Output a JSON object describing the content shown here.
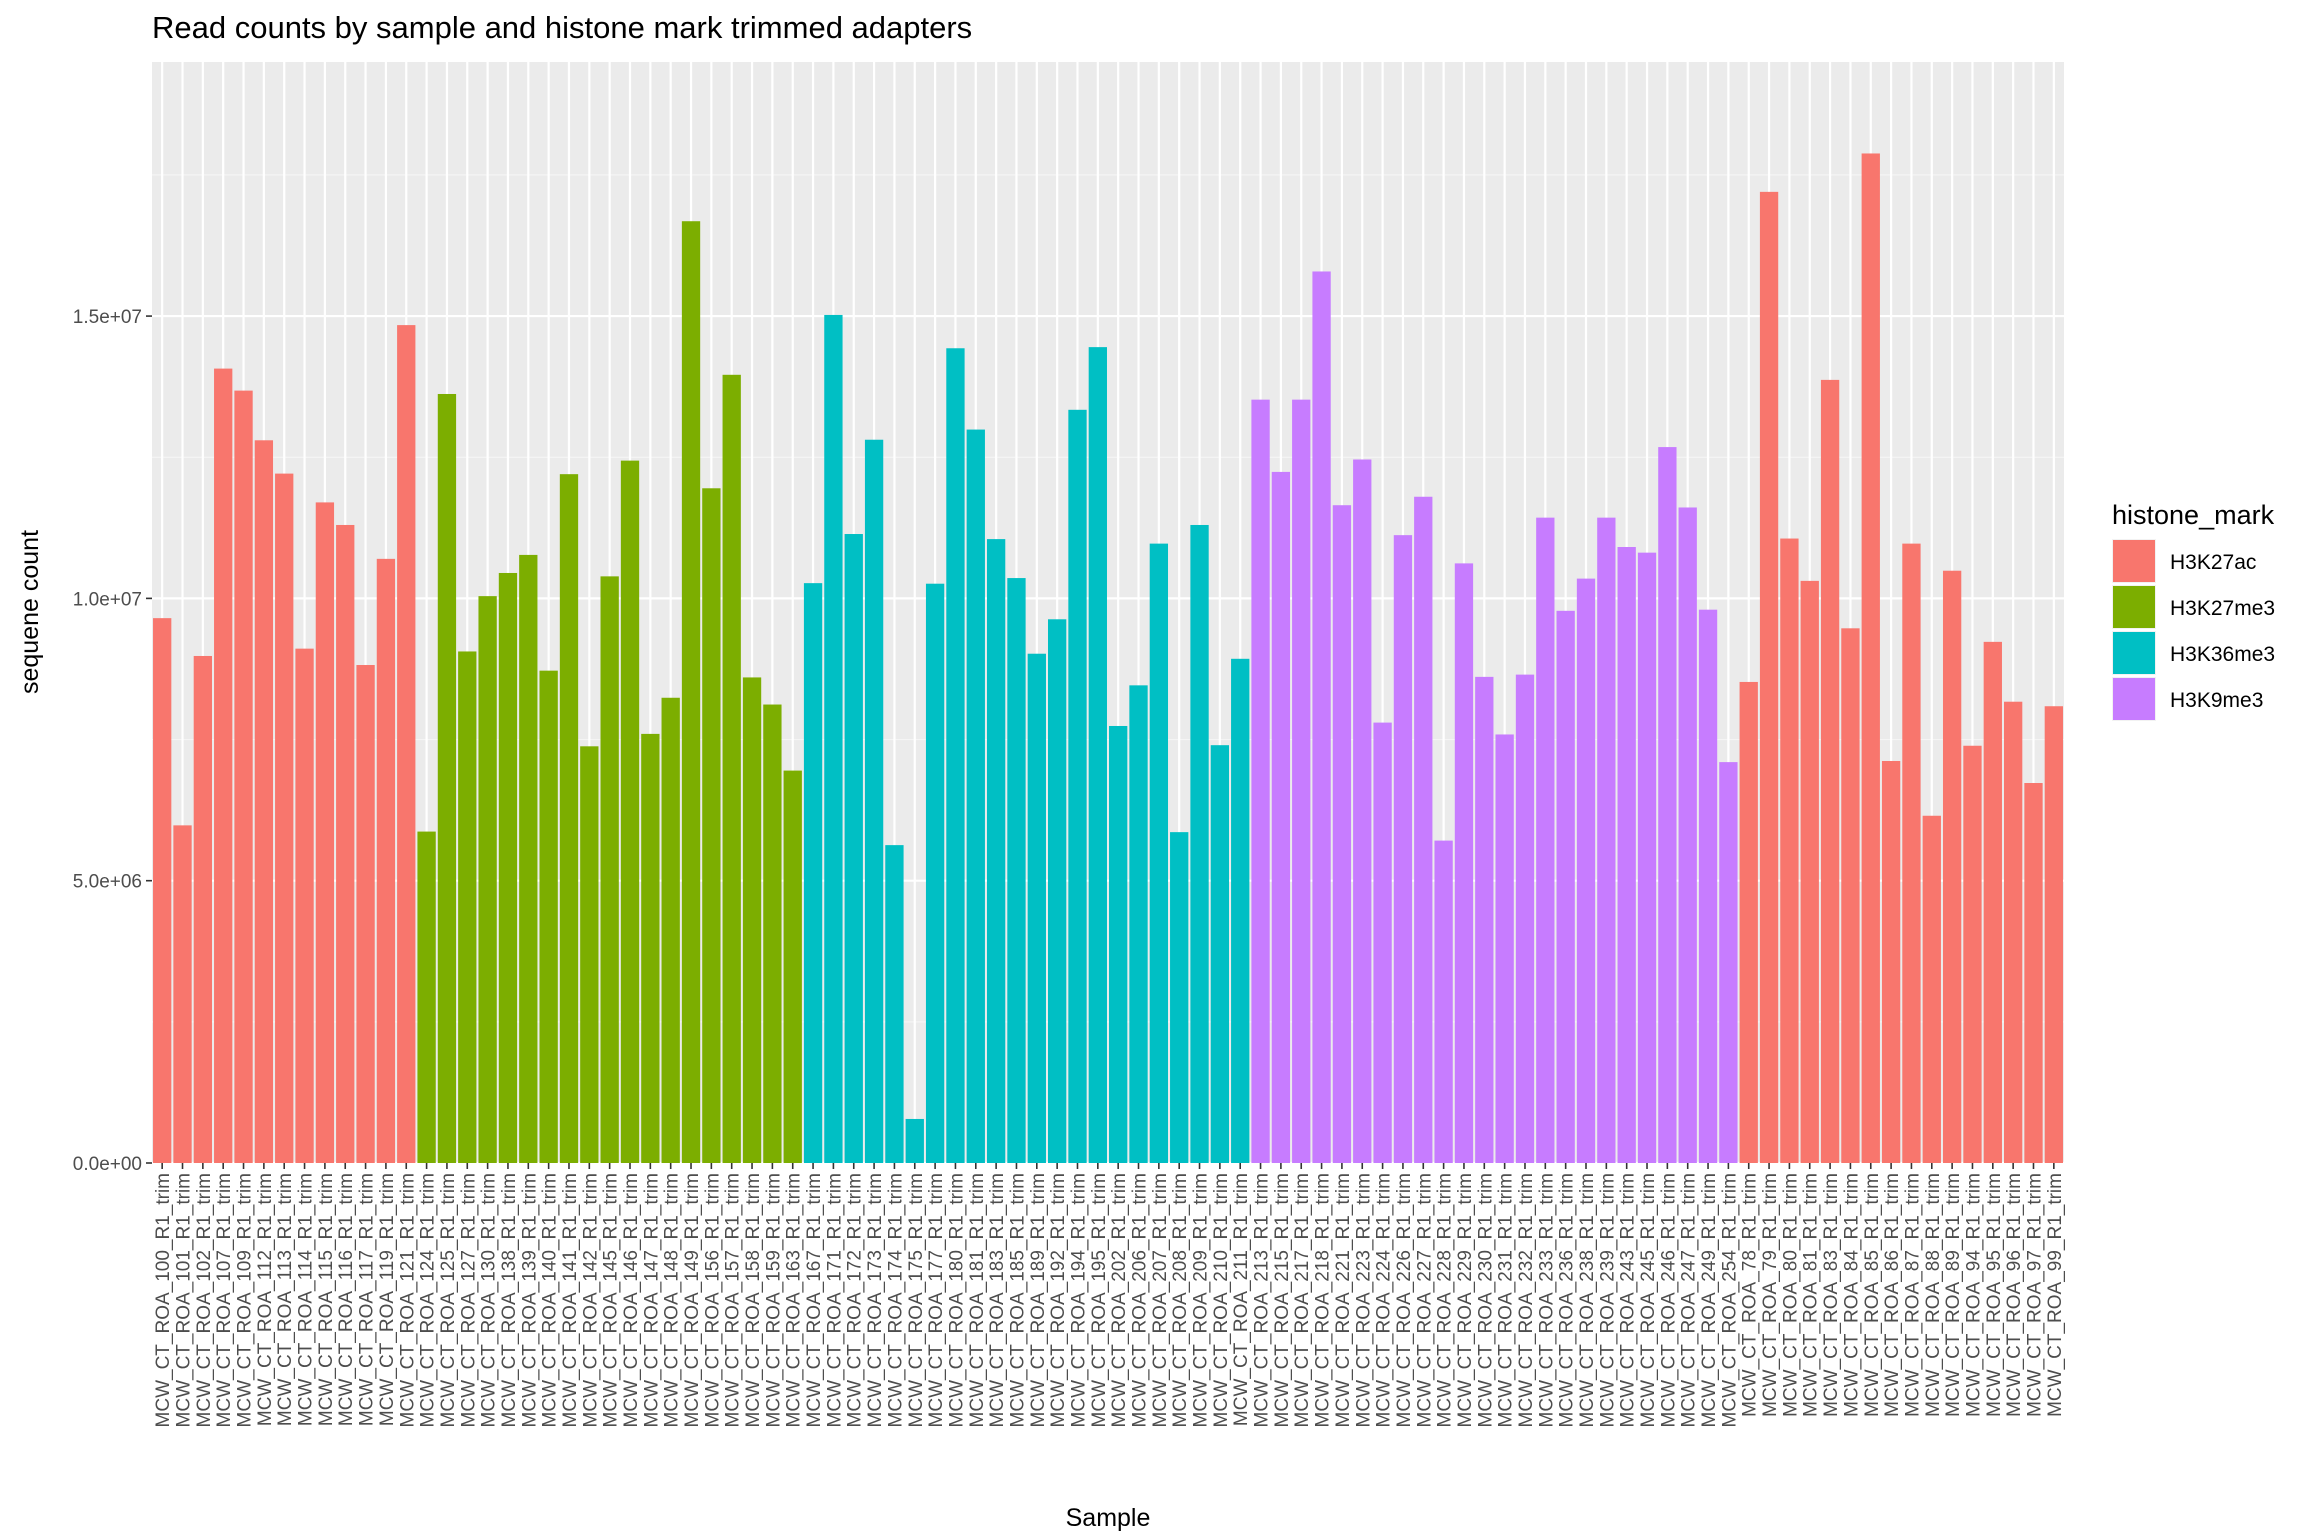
{
  "chart_data": {
    "type": "bar",
    "title": "Read counts by sample and histone mark trimmed adapters",
    "xlabel": "Sample",
    "ylabel": "sequene count",
    "ylim": [
      0,
      19500000
    ],
    "yticks": [
      0,
      5000000,
      10000000,
      15000000
    ],
    "ytick_labels": [
      "0.0e+00",
      "5.0e+06",
      "1.0e+07",
      "1.5e+07"
    ],
    "grid": true,
    "legend": {
      "title": "histone_mark",
      "position": "right",
      "entries": [
        {
          "name": "H3K27ac",
          "color": "#F8766D"
        },
        {
          "name": "H3K27me3",
          "color": "#7CAE00"
        },
        {
          "name": "H3K36me3",
          "color": "#00BFC4"
        },
        {
          "name": "H3K9me3",
          "color": "#C77CFF"
        }
      ]
    },
    "categories": [
      "MCW_CT_ROA_100_R1_trim",
      "MCW_CT_ROA_101_R1_trim",
      "MCW_CT_ROA_102_R1_trim",
      "MCW_CT_ROA_107_R1_trim",
      "MCW_CT_ROA_109_R1_trim",
      "MCW_CT_ROA_112_R1_trim",
      "MCW_CT_ROA_113_R1_trim",
      "MCW_CT_ROA_114_R1_trim",
      "MCW_CT_ROA_115_R1_trim",
      "MCW_CT_ROA_116_R1_trim",
      "MCW_CT_ROA_117_R1_trim",
      "MCW_CT_ROA_119_R1_trim",
      "MCW_CT_ROA_121_R1_trim",
      "MCW_CT_ROA_124_R1_trim",
      "MCW_CT_ROA_125_R1_trim",
      "MCW_CT_ROA_127_R1_trim",
      "MCW_CT_ROA_130_R1_trim",
      "MCW_CT_ROA_138_R1_trim",
      "MCW_CT_ROA_139_R1_trim",
      "MCW_CT_ROA_140_R1_trim",
      "MCW_CT_ROA_141_R1_trim",
      "MCW_CT_ROA_142_R1_trim",
      "MCW_CT_ROA_145_R1_trim",
      "MCW_CT_ROA_146_R1_trim",
      "MCW_CT_ROA_147_R1_trim",
      "MCW_CT_ROA_148_R1_trim",
      "MCW_CT_ROA_149_R1_trim",
      "MCW_CT_ROA_156_R1_trim",
      "MCW_CT_ROA_157_R1_trim",
      "MCW_CT_ROA_158_R1_trim",
      "MCW_CT_ROA_159_R1_trim",
      "MCW_CT_ROA_163_R1_trim",
      "MCW_CT_ROA_167_R1_trim",
      "MCW_CT_ROA_171_R1_trim",
      "MCW_CT_ROA_172_R1_trim",
      "MCW_CT_ROA_173_R1_trim",
      "MCW_CT_ROA_174_R1_trim",
      "MCW_CT_ROA_175_R1_trim",
      "MCW_CT_ROA_177_R1_trim",
      "MCW_CT_ROA_180_R1_trim",
      "MCW_CT_ROA_181_R1_trim",
      "MCW_CT_ROA_183_R1_trim",
      "MCW_CT_ROA_185_R1_trim",
      "MCW_CT_ROA_189_R1_trim",
      "MCW_CT_ROA_192_R1_trim",
      "MCW_CT_ROA_194_R1_trim",
      "MCW_CT_ROA_195_R1_trim",
      "MCW_CT_ROA_202_R1_trim",
      "MCW_CT_ROA_206_R1_trim",
      "MCW_CT_ROA_207_R1_trim",
      "MCW_CT_ROA_208_R1_trim",
      "MCW_CT_ROA_209_R1_trim",
      "MCW_CT_ROA_210_R1_trim",
      "MCW_CT_ROA_211_R1_trim",
      "MCW_CT_ROA_213_R1_trim",
      "MCW_CT_ROA_215_R1_trim",
      "MCW_CT_ROA_217_R1_trim",
      "MCW_CT_ROA_218_R1_trim",
      "MCW_CT_ROA_221_R1_trim",
      "MCW_CT_ROA_223_R1_trim",
      "MCW_CT_ROA_224_R1_trim",
      "MCW_CT_ROA_226_R1_trim",
      "MCW_CT_ROA_227_R1_trim",
      "MCW_CT_ROA_228_R1_trim",
      "MCW_CT_ROA_229_R1_trim",
      "MCW_CT_ROA_230_R1_trim",
      "MCW_CT_ROA_231_R1_trim",
      "MCW_CT_ROA_232_R1_trim",
      "MCW_CT_ROA_233_R1_trim",
      "MCW_CT_ROA_236_R1_trim",
      "MCW_CT_ROA_238_R1_trim",
      "MCW_CT_ROA_239_R1_trim",
      "MCW_CT_ROA_243_R1_trim",
      "MCW_CT_ROA_245_R1_trim",
      "MCW_CT_ROA_246_R1_trim",
      "MCW_CT_ROA_247_R1_trim",
      "MCW_CT_ROA_249_R1_trim",
      "MCW_CT_ROA_254_R1_trim",
      "MCW_CT_ROA_78_R1_trim",
      "MCW_CT_ROA_79_R1_trim",
      "MCW_CT_ROA_80_R1_trim",
      "MCW_CT_ROA_81_R1_trim",
      "MCW_CT_ROA_83_R1_trim",
      "MCW_CT_ROA_84_R1_trim",
      "MCW_CT_ROA_85_R1_trim",
      "MCW_CT_ROA_86_R1_trim",
      "MCW_CT_ROA_87_R1_trim",
      "MCW_CT_ROA_88_R1_trim",
      "MCW_CT_ROA_89_R1_trim",
      "MCW_CT_ROA_94_R1_trim",
      "MCW_CT_ROA_95_R1_trim",
      "MCW_CT_ROA_96_R1_trim",
      "MCW_CT_ROA_97_R1_trim",
      "MCW_CT_ROA_99_R1_trim"
    ],
    "groups": [
      "H3K27ac",
      "H3K27ac",
      "H3K27ac",
      "H3K27ac",
      "H3K27ac",
      "H3K27ac",
      "H3K27ac",
      "H3K27ac",
      "H3K27ac",
      "H3K27ac",
      "H3K27ac",
      "H3K27ac",
      "H3K27ac",
      "H3K27me3",
      "H3K27me3",
      "H3K27me3",
      "H3K27me3",
      "H3K27me3",
      "H3K27me3",
      "H3K27me3",
      "H3K27me3",
      "H3K27me3",
      "H3K27me3",
      "H3K27me3",
      "H3K27me3",
      "H3K27me3",
      "H3K27me3",
      "H3K27me3",
      "H3K27me3",
      "H3K27me3",
      "H3K27me3",
      "H3K27me3",
      "H3K36me3",
      "H3K36me3",
      "H3K36me3",
      "H3K36me3",
      "H3K36me3",
      "H3K36me3",
      "H3K36me3",
      "H3K36me3",
      "H3K36me3",
      "H3K36me3",
      "H3K36me3",
      "H3K36me3",
      "H3K36me3",
      "H3K36me3",
      "H3K36me3",
      "H3K36me3",
      "H3K36me3",
      "H3K36me3",
      "H3K36me3",
      "H3K36me3",
      "H3K36me3",
      "H3K36me3",
      "H3K9me3",
      "H3K9me3",
      "H3K9me3",
      "H3K9me3",
      "H3K9me3",
      "H3K9me3",
      "H3K9me3",
      "H3K9me3",
      "H3K9me3",
      "H3K9me3",
      "H3K9me3",
      "H3K9me3",
      "H3K9me3",
      "H3K9me3",
      "H3K9me3",
      "H3K9me3",
      "H3K9me3",
      "H3K9me3",
      "H3K9me3",
      "H3K9me3",
      "H3K9me3",
      "H3K9me3",
      "H3K9me3",
      "H3K9me3",
      "H3K27ac",
      "H3K27ac",
      "H3K27ac",
      "H3K27ac",
      "H3K27ac",
      "H3K27ac",
      "H3K27ac",
      "H3K27ac",
      "H3K27ac",
      "H3K27ac",
      "H3K27ac",
      "H3K27ac",
      "H3K27ac",
      "H3K27ac",
      "H3K27ac",
      "H3K27ac"
    ],
    "values": [
      9650000,
      5980000,
      8980000,
      14070000,
      13680000,
      12800000,
      12210000,
      9110000,
      11700000,
      11300000,
      8820000,
      10700000,
      14840000,
      5870000,
      13620000,
      9060000,
      10040000,
      10450000,
      10770000,
      8720000,
      12200000,
      7380000,
      10390000,
      12440000,
      7600000,
      8240000,
      16680000,
      11950000,
      13960000,
      8600000,
      8120000,
      6950000,
      10270000,
      15020000,
      11140000,
      12810000,
      5630000,
      780000,
      10260000,
      14430000,
      12990000,
      11050000,
      10360000,
      9020000,
      9630000,
      13340000,
      14450000,
      7740000,
      8460000,
      10970000,
      5860000,
      11300000,
      7400000,
      8930000,
      13520000,
      12240000,
      13520000,
      15790000,
      11650000,
      12460000,
      7800000,
      11120000,
      11800000,
      5710000,
      10620000,
      8610000,
      7590000,
      8650000,
      11430000,
      9780000,
      10350000,
      11430000,
      10910000,
      10810000,
      12680000,
      11610000,
      9800000,
      7100000,
      8520000,
      17200000,
      11060000,
      10310000,
      13870000,
      9470000,
      17880000,
      7120000,
      10970000,
      6150000,
      10490000,
      7390000,
      9230000,
      8170000,
      6730000,
      8090000
    ]
  }
}
